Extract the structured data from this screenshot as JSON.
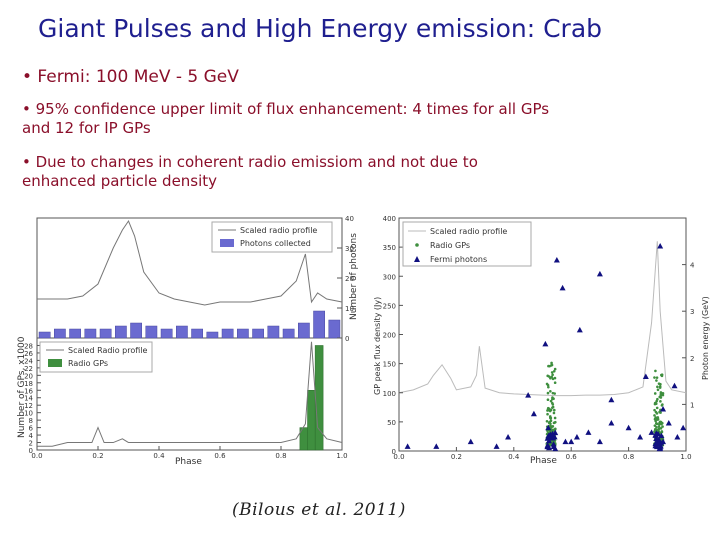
{
  "slide": {
    "title": "Giant Pulses and High Energy  emission: Crab",
    "bullets": [
      "• Fermi: 100 MeV - 5 GeV",
      "• 95% confidence upper limit of flux enhancement: 4 times for all GPs and 12 for IP GPs",
      "• Due to changes in coherent radio emissiom and not due to enhanced particle density"
    ],
    "caption": "(Bilous et al. 2011)"
  },
  "colors": {
    "title": "#1f1f8f",
    "bullets": "#8a0f2a",
    "photons": "#6a6ad0",
    "radio_gps": "#3f8f3f",
    "fermi": "#101080"
  },
  "chart_data": [
    {
      "type": "bar",
      "panel": "left-top",
      "title": "",
      "xlabel": "",
      "ylabel": "Number of photons",
      "xlim": [
        0.0,
        1.0
      ],
      "ylim": [
        0,
        40
      ],
      "y_ticks": [
        0,
        10,
        20,
        30,
        40
      ],
      "legend": [
        "Scaled radio profile",
        "Photons collected"
      ],
      "categories": [
        0.0,
        0.05,
        0.1,
        0.15,
        0.2,
        0.25,
        0.3,
        0.35,
        0.4,
        0.45,
        0.5,
        0.55,
        0.6,
        0.65,
        0.7,
        0.75,
        0.8,
        0.85,
        0.9,
        0.95
      ],
      "values": [
        2,
        3,
        3,
        3,
        3,
        4,
        5,
        4,
        3,
        4,
        3,
        2,
        3,
        3,
        3,
        4,
        3,
        5,
        9,
        6
      ],
      "overlay_line": {
        "x": [
          0.0,
          0.1,
          0.15,
          0.2,
          0.25,
          0.28,
          0.3,
          0.32,
          0.35,
          0.4,
          0.45,
          0.5,
          0.55,
          0.6,
          0.65,
          0.7,
          0.75,
          0.8,
          0.85,
          0.88,
          0.9,
          0.92,
          0.95,
          1.0
        ],
        "y": [
          13,
          13,
          14,
          18,
          30,
          36,
          39,
          34,
          22,
          15,
          13,
          12,
          11,
          12,
          12,
          12,
          13,
          14,
          19,
          28,
          12,
          15,
          13,
          12
        ]
      }
    },
    {
      "type": "bar",
      "panel": "left-bottom",
      "xlabel": "Phase",
      "ylabel": "Number of GPs, x1000",
      "xlim": [
        0.0,
        1.0
      ],
      "ylim": [
        0,
        30
      ],
      "y_ticks": [
        0,
        2,
        4,
        6,
        8,
        10,
        12,
        14,
        16,
        18,
        20,
        22,
        24,
        26,
        28
      ],
      "x_ticks": [
        0.0,
        0.2,
        0.4,
        0.6,
        0.8,
        1.0
      ],
      "legend": [
        "Scaled Radio profile",
        "Radio GPs"
      ],
      "categories": [
        0.875,
        0.9,
        0.925
      ],
      "values": [
        6,
        16,
        28
      ],
      "overlay_line": {
        "x": [
          0.0,
          0.05,
          0.1,
          0.15,
          0.18,
          0.2,
          0.22,
          0.25,
          0.28,
          0.3,
          0.35,
          0.4,
          0.45,
          0.5,
          0.55,
          0.6,
          0.65,
          0.7,
          0.75,
          0.8,
          0.85,
          0.88,
          0.9,
          0.92,
          0.95,
          1.0
        ],
        "y": [
          1,
          1,
          2,
          2,
          2,
          6,
          2,
          2,
          3,
          2,
          2,
          2,
          2,
          2,
          2,
          2,
          2,
          2,
          2,
          2,
          3,
          7,
          29,
          6,
          3,
          2
        ]
      }
    },
    {
      "type": "scatter",
      "panel": "right",
      "xlabel": "Phase",
      "ylabel": "GP peak flux density (Jy)",
      "y2label": "Photon energy (GeV)",
      "xlim": [
        0.0,
        1.0
      ],
      "ylim": [
        0,
        400
      ],
      "y2lim": [
        0,
        5
      ],
      "x_ticks": [
        0.0,
        0.2,
        0.4,
        0.6,
        0.8,
        1.0
      ],
      "y_ticks": [
        0,
        50,
        100,
        150,
        200,
        250,
        300,
        350,
        400
      ],
      "y2_ticks": [
        1,
        2,
        3,
        4
      ],
      "legend": [
        "Scaled radio profile",
        "Radio GPs",
        "Fermi photons"
      ],
      "scaled_radio_profile": {
        "x": [
          0.0,
          0.05,
          0.1,
          0.12,
          0.15,
          0.18,
          0.2,
          0.25,
          0.27,
          0.28,
          0.3,
          0.35,
          0.4,
          0.45,
          0.5,
          0.55,
          0.6,
          0.65,
          0.7,
          0.75,
          0.8,
          0.85,
          0.88,
          0.9,
          0.91,
          0.93,
          0.95,
          1.0
        ],
        "y": [
          100,
          105,
          115,
          130,
          148,
          125,
          105,
          110,
          130,
          180,
          108,
          100,
          98,
          97,
          96,
          95,
          95,
          96,
          96,
          97,
          100,
          110,
          220,
          360,
          240,
          120,
          105,
          100
        ]
      },
      "radio_gps": {
        "clusters": [
          {
            "phase": 0.53,
            "flux_range": [
              10,
              160
            ]
          },
          {
            "phase": 0.905,
            "flux_range": [
              10,
              140
            ]
          }
        ]
      },
      "fermi_photons": {
        "phase": [
          0.03,
          0.34,
          0.51,
          0.52,
          0.55,
          0.57,
          0.58,
          0.6,
          0.62,
          0.45,
          0.47,
          0.66,
          0.7,
          0.74,
          0.74,
          0.8,
          0.84,
          0.86,
          0.88,
          0.91,
          0.92,
          0.94,
          0.96,
          0.97,
          0.99,
          0.25,
          0.13,
          0.38,
          0.63,
          0.7,
          0.92
        ],
        "energy_gev": [
          0.1,
          0.1,
          2.3,
          0.5,
          4.1,
          3.5,
          0.2,
          0.2,
          0.3,
          1.2,
          0.8,
          0.4,
          3.8,
          0.6,
          1.1,
          0.5,
          0.3,
          1.6,
          0.4,
          4.4,
          0.2,
          0.6,
          1.4,
          0.3,
          0.5,
          0.2,
          0.1,
          0.3,
          2.6,
          0.2,
          0.9
        ]
      }
    }
  ]
}
